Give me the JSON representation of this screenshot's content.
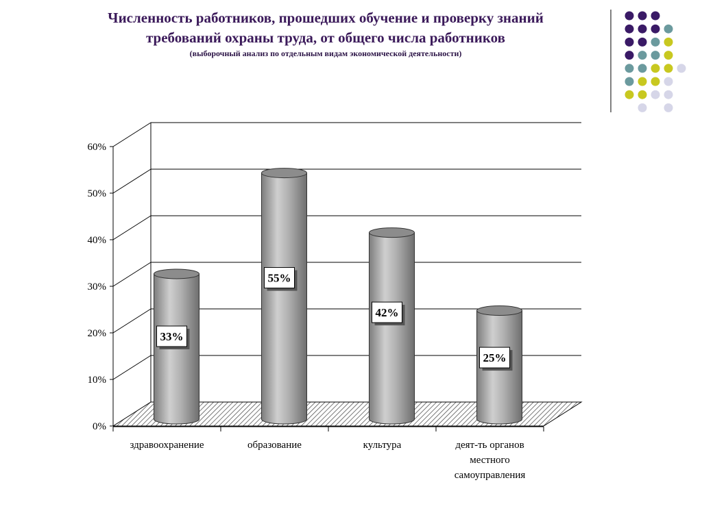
{
  "title": {
    "line1": "Численность работников,  прошедших обучение и проверку знаний",
    "line2": "требований охраны труда, от общего числа работников",
    "subtitle": "(выборочный анализ по отдельным видам экономической деятельности)"
  },
  "chart_data": {
    "type": "bar",
    "style": "3d-cylinder",
    "categories": [
      [
        "здравоохранение"
      ],
      [
        "образование"
      ],
      [
        "культура"
      ],
      [
        "деят-ть органов",
        "местного",
        "самоуправления"
      ]
    ],
    "values": [
      33,
      55,
      42,
      25
    ],
    "data_labels": [
      "33%",
      "55%",
      "42%",
      "25%"
    ],
    "ylim": [
      0,
      60
    ],
    "yticks": [
      "0%",
      "10%",
      "20%",
      "30%",
      "40%",
      "50%",
      "60%"
    ],
    "grid": true,
    "legend": "none"
  },
  "colors": {
    "title": "#3b1a5a",
    "bar": "#a8a8a8",
    "bar_top": "#8c8c8c",
    "dot_purple": "#3a1a66",
    "dot_teal": "#6b9a9e",
    "dot_yellow": "#c8c820",
    "dot_lavender": "#d6d6e8"
  }
}
